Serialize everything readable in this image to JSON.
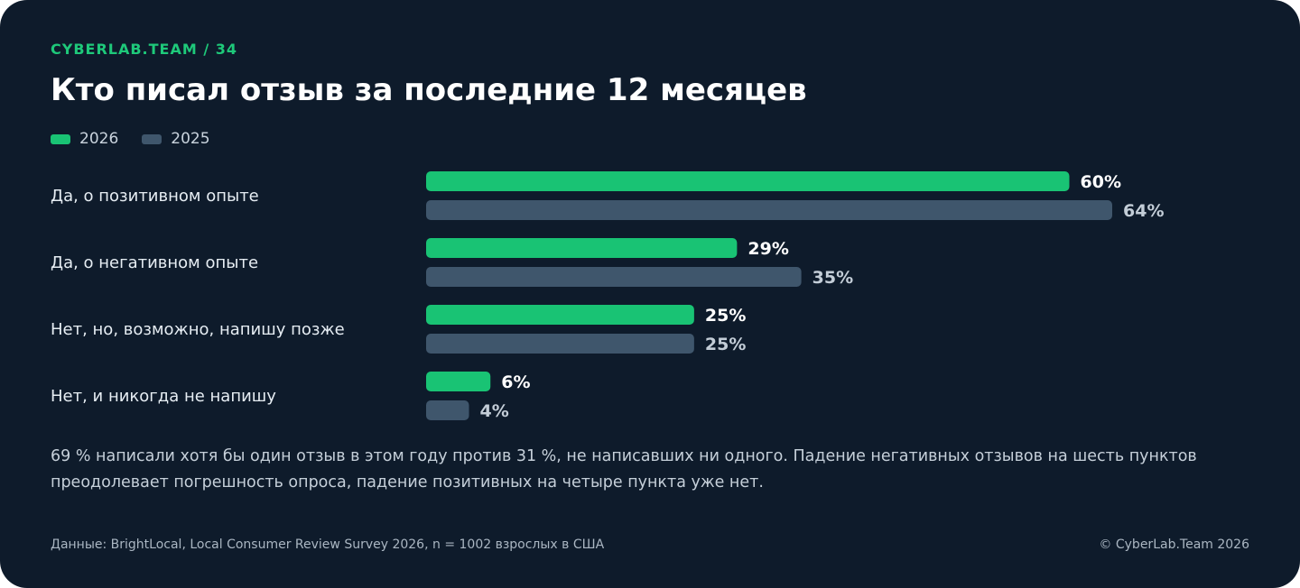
{
  "header": {
    "kicker": "CYBERLAB.TEAM / 34",
    "title": "Кто писал отзыв за последние 12 месяцев"
  },
  "colors": {
    "series_2026": "#19c374",
    "series_2025": "#3f566c",
    "label_2026": "#ffffff",
    "label_2025": "#c3cdd7"
  },
  "chart_data": {
    "type": "bar",
    "orientation": "horizontal",
    "categories": [
      "Да, о позитивном опыте",
      "Да, о негативном опыте",
      "Нет, но, возможно, напишу позже",
      "Нет, и никогда не напишу"
    ],
    "series": [
      {
        "name": "2026",
        "values": [
          60,
          29,
          25,
          6
        ],
        "color": "#19c374"
      },
      {
        "name": "2025",
        "values": [
          64,
          35,
          25,
          4
        ],
        "color": "#3f566c"
      }
    ],
    "value_suffix": "%",
    "xlim": [
      0,
      100
    ],
    "legend_position": "top-left",
    "grid": false
  },
  "note": "69 % написали хотя бы один отзыв в этом году против 31 %, не написавших ни одного. Падение негативных отзывов на шесть пунктов преодолевает погрешность опроса, падение позитивных на четыре пункта уже нет.",
  "footer": {
    "source": "Данные: BrightLocal, Local Consumer Review Survey 2026, n = 1002 взрослых в США",
    "copyright": "© CyberLab.Team  2026"
  }
}
